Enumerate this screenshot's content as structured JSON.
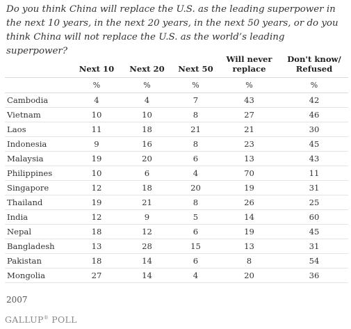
{
  "question": "Do you think China will replace the U.S. as the leading superpower in the next 10 years, in the next 20 years, in the next 50 years, or do you think China will not replace the U.S. as the world’s leading superpower?",
  "columns": [
    {
      "line1": "",
      "line2": "Next 10"
    },
    {
      "line1": "",
      "line2": "Next 20"
    },
    {
      "line1": "",
      "line2": "Next 50"
    },
    {
      "line1": "Will never",
      "line2": "replace"
    },
    {
      "line1": "Don't know/",
      "line2": "Refused"
    }
  ],
  "unit": "%",
  "chart_data": {
    "type": "table",
    "columns": [
      "Next 10",
      "Next 20",
      "Next 50",
      "Will never replace",
      "Don't know/ Refused"
    ],
    "unit": "%",
    "rows": [
      {
        "country": "Cambodia",
        "values": [
          4,
          4,
          7,
          43,
          42
        ]
      },
      {
        "country": "Vietnam",
        "values": [
          10,
          10,
          8,
          27,
          46
        ]
      },
      {
        "country": "Laos",
        "values": [
          11,
          18,
          21,
          21,
          30
        ]
      },
      {
        "country": "Indonesia",
        "values": [
          9,
          16,
          8,
          23,
          45
        ]
      },
      {
        "country": "Malaysia",
        "values": [
          19,
          20,
          6,
          13,
          43
        ]
      },
      {
        "country": "Philippines",
        "values": [
          10,
          6,
          4,
          70,
          11
        ]
      },
      {
        "country": "Singapore",
        "values": [
          12,
          18,
          20,
          19,
          31
        ]
      },
      {
        "country": "Thailand",
        "values": [
          19,
          21,
          8,
          26,
          25
        ]
      },
      {
        "country": "India",
        "values": [
          12,
          9,
          5,
          14,
          60
        ]
      },
      {
        "country": "Nepal",
        "values": [
          18,
          12,
          6,
          19,
          45
        ]
      },
      {
        "country": "Bangladesh",
        "values": [
          13,
          28,
          15,
          13,
          31
        ]
      },
      {
        "country": "Pakistan",
        "values": [
          18,
          14,
          6,
          8,
          54
        ]
      },
      {
        "country": "Mongolia",
        "values": [
          27,
          14,
          4,
          20,
          36
        ]
      }
    ]
  },
  "year": "2007",
  "logo": {
    "brand": "GALLUP",
    "suffix": " POLL",
    "mark": "®"
  }
}
